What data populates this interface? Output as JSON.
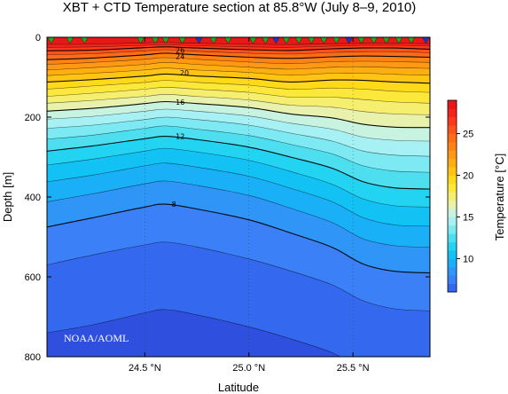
{
  "chart_data": {
    "type": "heatmap",
    "title": "XBT + CTD Temperature section at 85.8°W (July 8–9, 2010)",
    "xlabel": "Latitude",
    "ylabel": "Depth [m]",
    "colorbar_label": "Temperature [°C]",
    "credit": "NOAA/AOML",
    "xlim": [
      24.03,
      25.87
    ],
    "ylim": [
      800,
      0
    ],
    "x_ticks": [
      {
        "value": 24.5,
        "label": "24.5 °N"
      },
      {
        "value": 25.0,
        "label": "25.0 °N"
      },
      {
        "value": 25.5,
        "label": "25.5 °N"
      }
    ],
    "y_ticks": [
      {
        "value": 0,
        "label": "0"
      },
      {
        "value": 200,
        "label": "200"
      },
      {
        "value": 400,
        "label": "400"
      },
      {
        "value": 600,
        "label": "600"
      },
      {
        "value": 800,
        "label": "800"
      }
    ],
    "colorbar_range": [
      6,
      29
    ],
    "colorbar_ticks": [
      {
        "value": 10,
        "label": "10"
      },
      {
        "value": 15,
        "label": "15"
      },
      {
        "value": 20,
        "label": "20"
      },
      {
        "value": 25,
        "label": "25"
      }
    ],
    "colormap": [
      {
        "t": 6,
        "color": "#2f50de"
      },
      {
        "t": 7,
        "color": "#3468ee"
      },
      {
        "t": 8,
        "color": "#3b80f6"
      },
      {
        "t": 9,
        "color": "#2f96f8"
      },
      {
        "t": 10,
        "color": "#1ab0f7"
      },
      {
        "t": 11,
        "color": "#12c2f5"
      },
      {
        "t": 12,
        "color": "#22d4f2"
      },
      {
        "t": 13,
        "color": "#4ddff0"
      },
      {
        "t": 14,
        "color": "#7de9f3"
      },
      {
        "t": 15,
        "color": "#a7f0f3"
      },
      {
        "t": 16,
        "color": "#c9f3e1"
      },
      {
        "t": 17,
        "color": "#e9f2ad"
      },
      {
        "t": 18,
        "color": "#f6ee6f"
      },
      {
        "t": 19,
        "color": "#fce83a"
      },
      {
        "t": 20,
        "color": "#ffd91a"
      },
      {
        "t": 21,
        "color": "#ffc414"
      },
      {
        "t": 22,
        "color": "#ffae12"
      },
      {
        "t": 23,
        "color": "#ff9812"
      },
      {
        "t": 24,
        "color": "#ff8314"
      },
      {
        "t": 25,
        "color": "#ff6c18"
      },
      {
        "t": 26,
        "color": "#ff531c"
      },
      {
        "t": 27,
        "color": "#ff3a1c"
      },
      {
        "t": 28,
        "color": "#f5231a"
      },
      {
        "t": 29,
        "color": "#e81818"
      }
    ],
    "isotherm_depths": {
      "latitudes": [
        24.03,
        24.25,
        24.5,
        24.6,
        24.75,
        25.0,
        25.2,
        25.4,
        25.55,
        25.7,
        25.87
      ],
      "levels": [
        {
          "t": 28,
          "depths": [
            18,
            17,
            14,
            13,
            15,
            17,
            18,
            16,
            15,
            15,
            16
          ]
        },
        {
          "t": 27,
          "depths": [
            25,
            24,
            20,
            19,
            21,
            24,
            25,
            22,
            20,
            20,
            22
          ]
        },
        {
          "t": 26,
          "depths": [
            34,
            32,
            26,
            24,
            27,
            31,
            33,
            29,
            27,
            27,
            30
          ]
        },
        {
          "t": 25,
          "depths": [
            44,
            41,
            34,
            31,
            35,
            40,
            42,
            38,
            36,
            36,
            39
          ]
        },
        {
          "t": 24,
          "depths": [
            56,
            52,
            44,
            40,
            44,
            50,
            53,
            49,
            47,
            48,
            50
          ]
        },
        {
          "t": 23,
          "depths": [
            68,
            63,
            55,
            51,
            55,
            62,
            66,
            61,
            60,
            61,
            63
          ]
        },
        {
          "t": 22,
          "depths": [
            82,
            76,
            68,
            63,
            68,
            75,
            80,
            75,
            74,
            76,
            78
          ]
        },
        {
          "t": 21,
          "depths": [
            96,
            90,
            82,
            77,
            82,
            88,
            95,
            90,
            90,
            93,
            95
          ]
        },
        {
          "t": 20,
          "depths": [
            112,
            106,
            97,
            92,
            97,
            103,
            112,
            107,
            108,
            112,
            115
          ]
        },
        {
          "t": 19,
          "depths": [
            130,
            122,
            113,
            108,
            113,
            120,
            130,
            127,
            130,
            135,
            138
          ]
        },
        {
          "t": 18,
          "depths": [
            148,
            140,
            130,
            125,
            130,
            138,
            150,
            150,
            156,
            162,
            165
          ]
        },
        {
          "t": 17,
          "depths": [
            165,
            158,
            148,
            143,
            148,
            157,
            170,
            175,
            186,
            192,
            194
          ]
        },
        {
          "t": 16,
          "depths": [
            185,
            178,
            166,
            161,
            166,
            176,
            192,
            202,
            218,
            225,
            226
          ]
        },
        {
          "t": 15,
          "depths": [
            205,
            198,
            185,
            180,
            185,
            197,
            215,
            230,
            250,
            258,
            260
          ]
        },
        {
          "t": 14,
          "depths": [
            228,
            220,
            206,
            200,
            206,
            220,
            240,
            260,
            285,
            295,
            298
          ]
        },
        {
          "t": 13,
          "depths": [
            255,
            245,
            228,
            222,
            230,
            246,
            268,
            292,
            322,
            335,
            338
          ]
        },
        {
          "t": 12,
          "depths": [
            285,
            272,
            254,
            248,
            256,
            275,
            300,
            328,
            362,
            377,
            380
          ]
        },
        {
          "t": 11,
          "depths": [
            320,
            305,
            285,
            278,
            287,
            308,
            336,
            368,
            405,
            422,
            425
          ]
        },
        {
          "t": 10,
          "depths": [
            362,
            345,
            322,
            315,
            325,
            348,
            378,
            412,
            452,
            470,
            473
          ]
        },
        {
          "t": 9,
          "depths": [
            412,
            392,
            367,
            360,
            371,
            396,
            428,
            464,
            505,
            522,
            526
          ]
        },
        {
          "t": 8,
          "depths": [
            475,
            452,
            425,
            418,
            430,
            457,
            490,
            526,
            568,
            586,
            590
          ]
        },
        {
          "t": 7,
          "depths": [
            570,
            545,
            520,
            513,
            525,
            555,
            585,
            620,
            660,
            680,
            685
          ]
        },
        {
          "t": 6,
          "depths": [
            740,
            720,
            690,
            682,
            695,
            725,
            755,
            790,
            830,
            850,
            855
          ]
        }
      ]
    },
    "contour_labels": [
      {
        "t": 26,
        "text": "26",
        "lat": 24.67,
        "depth": 32
      },
      {
        "t": 24,
        "text": "24",
        "lat": 24.67,
        "depth": 48
      },
      {
        "t": 20,
        "text": "20",
        "lat": 24.69,
        "depth": 89
      },
      {
        "t": 16,
        "text": "16",
        "lat": 24.67,
        "depth": 162
      },
      {
        "t": 12,
        "text": "12",
        "lat": 24.67,
        "depth": 248
      },
      {
        "t": 8,
        "text": "8",
        "lat": 24.64,
        "depth": 418
      }
    ],
    "station_markers": [
      {
        "lat": 24.05,
        "kind": "XBT"
      },
      {
        "lat": 24.14,
        "kind": "XBT"
      },
      {
        "lat": 24.21,
        "kind": "XBT"
      },
      {
        "lat": 24.48,
        "kind": "XBT"
      },
      {
        "lat": 24.55,
        "kind": "XBT"
      },
      {
        "lat": 24.6,
        "kind": "XBT"
      },
      {
        "lat": 24.68,
        "kind": "XBT"
      },
      {
        "lat": 24.76,
        "kind": "CTD"
      },
      {
        "lat": 24.83,
        "kind": "XBT"
      },
      {
        "lat": 24.9,
        "kind": "XBT"
      },
      {
        "lat": 25.02,
        "kind": "XBT"
      },
      {
        "lat": 25.08,
        "kind": "XBT"
      },
      {
        "lat": 25.13,
        "kind": "CTD"
      },
      {
        "lat": 25.18,
        "kind": "XBT"
      },
      {
        "lat": 25.24,
        "kind": "XBT"
      },
      {
        "lat": 25.3,
        "kind": "XBT"
      },
      {
        "lat": 25.36,
        "kind": "XBT"
      },
      {
        "lat": 25.42,
        "kind": "XBT"
      },
      {
        "lat": 25.48,
        "kind": "CTD"
      },
      {
        "lat": 25.54,
        "kind": "XBT"
      },
      {
        "lat": 25.6,
        "kind": "XBT"
      },
      {
        "lat": 25.66,
        "kind": "XBT"
      },
      {
        "lat": 25.72,
        "kind": "XBT"
      },
      {
        "lat": 25.78,
        "kind": "XBT"
      },
      {
        "lat": 25.85,
        "kind": "CTD"
      }
    ],
    "marker_colors": {
      "XBT": "#22aa22",
      "CTD": "#2233cc"
    },
    "grid": "dotted-vertical",
    "colorbar_position": "right"
  }
}
